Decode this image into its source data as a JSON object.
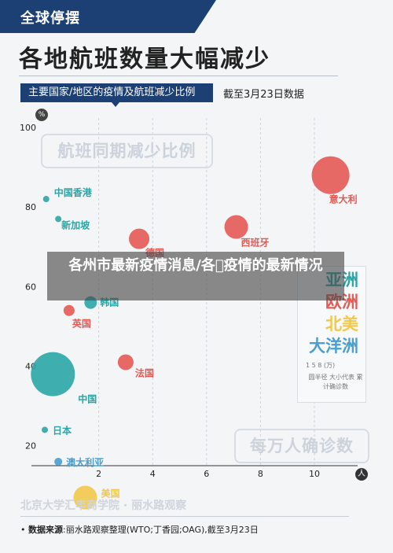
{
  "header": {
    "tag": "全球停摆",
    "title": "各地航班数量大幅减少"
  },
  "subheader": {
    "label": "主要国家/地区的疫情及航班减少比例",
    "as_of": "截至3月23日数据"
  },
  "chart_data": {
    "type": "scatter",
    "title": "航班同期减少比例",
    "y_unit": "%",
    "x_unit": "人",
    "xlim": [
      0,
      11.5
    ],
    "ylim": [
      15,
      100
    ],
    "x_ticks": [
      2,
      4,
      6,
      8,
      10
    ],
    "y_ticks": [
      20,
      40,
      60,
      80,
      100
    ],
    "grid": "vertical-dashed",
    "size_metric": "每万人确诊数",
    "size_legend": {
      "caption": "1   5   8 (万)",
      "note": "圆半径 大小代表 累计确诊数"
    },
    "regions": [
      {
        "name": "亚洲",
        "color": "#2aa6a6"
      },
      {
        "name": "欧洲",
        "color": "#e45a55"
      },
      {
        "name": "北美",
        "color": "#f2c84b"
      },
      {
        "name": "大洋洲",
        "color": "#4a9fcf"
      }
    ],
    "points": [
      {
        "label": "中国香港",
        "region": "亚洲",
        "x": 0.05,
        "y": 82,
        "r": 4
      },
      {
        "label": "新加坡",
        "region": "亚洲",
        "x": 0.5,
        "y": 77,
        "r": 4
      },
      {
        "label": "德国",
        "region": "欧洲",
        "x": 3.5,
        "y": 72,
        "r": 13
      },
      {
        "label": "西班牙",
        "region": "欧洲",
        "x": 7.1,
        "y": 75,
        "r": 15
      },
      {
        "label": "意大利",
        "region": "欧洲",
        "x": 10.6,
        "y": 88,
        "r": 24
      },
      {
        "label": "韩国",
        "region": "亚洲",
        "x": 1.7,
        "y": 56,
        "r": 8
      },
      {
        "label": "英国",
        "region": "欧洲",
        "x": 0.9,
        "y": 54,
        "r": 7
      },
      {
        "label": "中国",
        "region": "亚洲",
        "x": 0.3,
        "y": 38,
        "r": 28
      },
      {
        "label": "法国",
        "region": "欧洲",
        "x": 3.0,
        "y": 41,
        "r": 10
      },
      {
        "label": "日本",
        "region": "亚洲",
        "x": 0.0,
        "y": 24,
        "r": 4
      },
      {
        "label": "澳大利亚",
        "region": "大洋洲",
        "x": 0.5,
        "y": 16,
        "r": 5
      },
      {
        "label": "美国",
        "region": "北美",
        "x": 1.5,
        "y": 7,
        "r": 15
      }
    ]
  },
  "overlay_text": "各州市最新疫情消息/各\u0000疫情的最新情况",
  "footer": {
    "org": "北京大学汇丰商学院 · 丽水路观察",
    "source_label": "数据来源",
    "source_text": ":丽水路观察整理(WTO;丁香园;OAG),截至3月23日"
  }
}
